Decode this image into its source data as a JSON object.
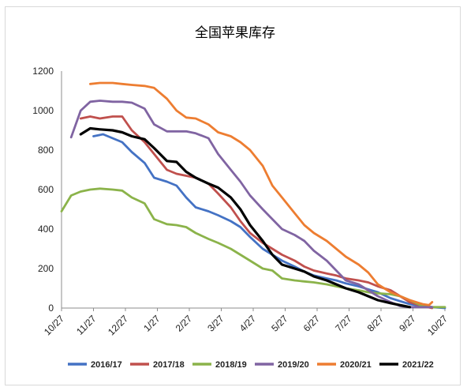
{
  "chart_data": {
    "type": "line",
    "title": "全国苹果库存",
    "xlabel": "",
    "ylabel": "",
    "ylim": [
      0,
      1200
    ],
    "yticks": [
      0,
      200,
      400,
      600,
      800,
      1000,
      1200
    ],
    "grid": false,
    "legend": "bottom",
    "x_domain": [
      0,
      12
    ],
    "categories": [
      "10/27",
      "11/27",
      "12/27",
      "1/27",
      "2/27",
      "3/27",
      "4/27",
      "5/27",
      "6/27",
      "7/27",
      "8/27",
      "9/27",
      "10/27"
    ],
    "series": [
      {
        "name": "2016/17",
        "color": "#4472c4",
        "x": [
          1.0,
          1.3,
          1.6,
          1.9,
          2.2,
          2.6,
          2.9,
          3.3,
          3.6,
          3.9,
          4.2,
          4.6,
          4.9,
          5.3,
          5.6,
          5.9,
          6.3,
          6.6,
          6.9,
          7.3,
          7.6,
          7.9,
          8.3,
          8.6,
          8.9,
          9.3,
          9.6,
          9.9,
          10.3,
          10.6,
          10.9,
          11.3,
          11.6,
          12.0
        ],
        "y": [
          870,
          880,
          860,
          840,
          790,
          735,
          660,
          640,
          620,
          560,
          510,
          490,
          470,
          440,
          410,
          360,
          300,
          270,
          240,
          210,
          185,
          165,
          150,
          140,
          125,
          110,
          95,
          80,
          50,
          35,
          20,
          10,
          5,
          0
        ]
      },
      {
        "name": "2017/18",
        "color": "#c0504d",
        "x": [
          0.6,
          0.9,
          1.2,
          1.6,
          1.9,
          2.2,
          2.6,
          2.9,
          3.3,
          3.6,
          3.9,
          4.2,
          4.6,
          4.9,
          5.3,
          5.6,
          5.9,
          6.3,
          6.6,
          6.9,
          7.3,
          7.6,
          7.9,
          8.3,
          8.6,
          8.9,
          9.3,
          9.6,
          9.9,
          10.3,
          10.6,
          10.9,
          11.3,
          11.6
        ],
        "y": [
          960,
          970,
          960,
          970,
          970,
          900,
          840,
          780,
          700,
          680,
          670,
          660,
          630,
          580,
          510,
          440,
          380,
          330,
          300,
          270,
          240,
          210,
          190,
          175,
          165,
          150,
          140,
          130,
          110,
          90,
          60,
          30,
          10,
          0
        ]
      },
      {
        "name": "2018/19",
        "color": "#8bb34a",
        "x": [
          0.0,
          0.3,
          0.6,
          0.9,
          1.2,
          1.6,
          1.9,
          2.2,
          2.6,
          2.9,
          3.3,
          3.6,
          3.9,
          4.2,
          4.6,
          4.9,
          5.3,
          5.6,
          5.9,
          6.3,
          6.6,
          6.9,
          7.3,
          7.6,
          7.9,
          8.3,
          8.6,
          8.9,
          9.3,
          9.6,
          9.9,
          10.3,
          10.6,
          10.9,
          11.3,
          11.6,
          12.0
        ],
        "y": [
          490,
          570,
          590,
          600,
          605,
          600,
          595,
          560,
          530,
          450,
          425,
          420,
          410,
          380,
          350,
          330,
          300,
          270,
          240,
          200,
          190,
          150,
          140,
          135,
          130,
          120,
          110,
          100,
          90,
          80,
          75,
          70,
          60,
          40,
          10,
          5,
          5
        ]
      },
      {
        "name": "2019/20",
        "color": "#8064a2",
        "x": [
          0.3,
          0.6,
          0.9,
          1.2,
          1.6,
          1.9,
          2.2,
          2.6,
          2.9,
          3.3,
          3.6,
          3.9,
          4.2,
          4.6,
          4.9,
          5.3,
          5.6,
          5.9,
          6.3,
          6.6,
          6.9,
          7.3,
          7.6,
          7.9,
          8.3,
          8.6,
          8.9,
          9.3,
          9.6,
          9.9,
          10.3,
          10.6,
          10.9,
          11.3,
          11.6
        ],
        "y": [
          865,
          1000,
          1045,
          1050,
          1045,
          1045,
          1040,
          1010,
          930,
          895,
          895,
          895,
          885,
          860,
          780,
          700,
          640,
          570,
          500,
          450,
          400,
          370,
          340,
          290,
          240,
          190,
          140,
          120,
          90,
          60,
          30,
          10,
          5,
          5,
          5
        ]
      },
      {
        "name": "2020/21",
        "color": "#ed7d31",
        "x": [
          0.9,
          1.2,
          1.6,
          1.9,
          2.2,
          2.6,
          2.9,
          3.3,
          3.6,
          3.9,
          4.2,
          4.6,
          4.9,
          5.3,
          5.6,
          5.9,
          6.3,
          6.6,
          6.9,
          7.3,
          7.6,
          7.9,
          8.3,
          8.6,
          8.9,
          9.3,
          9.6,
          9.9,
          10.3,
          10.6,
          10.9,
          11.3,
          11.5,
          11.6
        ],
        "y": [
          1135,
          1140,
          1140,
          1135,
          1130,
          1125,
          1115,
          1060,
          1000,
          965,
          960,
          930,
          890,
          870,
          840,
          800,
          720,
          620,
          560,
          480,
          420,
          380,
          340,
          300,
          260,
          220,
          180,
          120,
          80,
          60,
          40,
          20,
          15,
          30
        ]
      },
      {
        "name": "2021/22",
        "color": "#000000",
        "x": [
          0.6,
          0.9,
          1.2,
          1.6,
          1.9,
          2.2,
          2.6,
          2.9,
          3.3,
          3.6,
          3.9,
          4.2,
          4.6,
          4.9,
          5.3,
          5.6,
          5.9,
          6.3,
          6.6,
          6.9,
          7.3,
          7.6,
          7.9,
          8.3,
          8.6,
          8.9,
          9.3,
          9.6,
          9.9,
          10.3,
          10.6,
          10.9
        ],
        "y": [
          880,
          910,
          905,
          900,
          890,
          870,
          855,
          810,
          745,
          740,
          690,
          660,
          630,
          610,
          560,
          500,
          420,
          340,
          270,
          220,
          200,
          185,
          160,
          140,
          120,
          100,
          80,
          60,
          40,
          25,
          15,
          5
        ]
      }
    ]
  }
}
